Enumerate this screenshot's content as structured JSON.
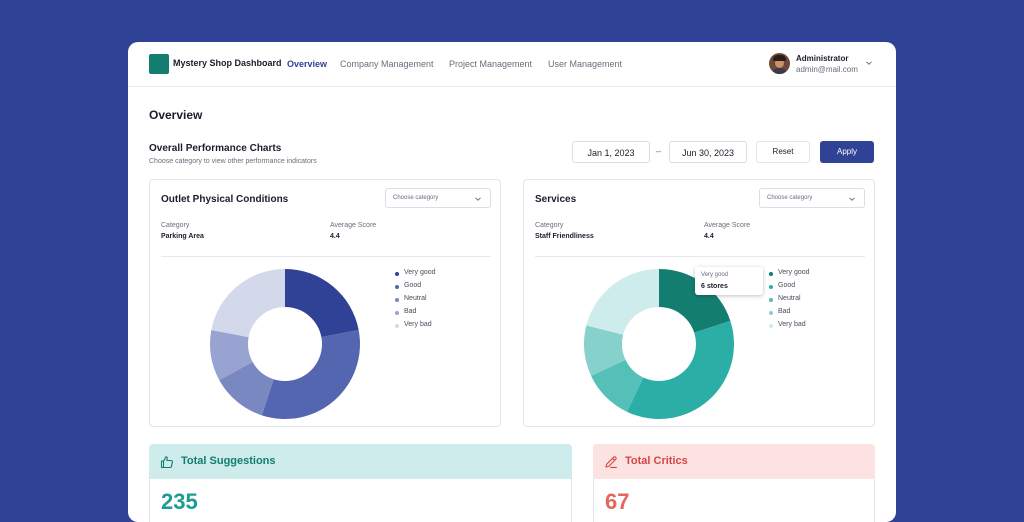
{
  "header": {
    "app_name": "Mystery Shop Dashboard",
    "nav": [
      {
        "label": "Overview",
        "active": true
      },
      {
        "label": "Company Management",
        "active": false
      },
      {
        "label": "Project Management",
        "active": false
      },
      {
        "label": "User Management",
        "active": false
      }
    ],
    "user": {
      "name": "Administrator",
      "email": "admin@mail.com"
    }
  },
  "page": {
    "title": "Overview",
    "section_title": "Overall Performance Charts",
    "section_subtitle": "Choose category to view other performance indicators"
  },
  "filters": {
    "start_date": "Jan 1, 2023",
    "end_date": "Jun 30, 2023",
    "separator": "–",
    "reset_label": "Reset",
    "apply_label": "Apply"
  },
  "cards": [
    {
      "title": "Outlet Physical Conditions",
      "select_placeholder": "Choose category",
      "category_label": "Category",
      "category_value": "Parking Area",
      "score_label": "Average Score",
      "score_value": "4.4",
      "chart_data": {
        "type": "pie",
        "categories": [
          "Very good",
          "Good",
          "Neutral",
          "Bad",
          "Very bad"
        ],
        "values": [
          22,
          33,
          12,
          11,
          22
        ],
        "colors": [
          "#2f4295",
          "#5566b0",
          "#7a88c2",
          "#98a3d1",
          "#d4d8eb"
        ]
      }
    },
    {
      "title": "Services",
      "select_placeholder": "Choose category",
      "category_label": "Category",
      "category_value": "Staff Friendliness",
      "score_label": "Average Score",
      "score_value": "4.4",
      "tooltip": {
        "label": "Very good",
        "value": "6 stores"
      },
      "chart_data": {
        "type": "pie",
        "categories": [
          "Very good",
          "Good",
          "Neutral",
          "Bad",
          "Very bad"
        ],
        "values": [
          20,
          37,
          11,
          11,
          21
        ],
        "colors": [
          "#137d70",
          "#2aaea6",
          "#55c0b8",
          "#86d1cc",
          "#cdeceb"
        ]
      }
    }
  ],
  "stats": [
    {
      "title": "Total Suggestions",
      "value": "235",
      "icon": "thumbs-up-icon",
      "bg": "#cdeceb",
      "color": "#137d70",
      "value_color": "#1a9e94"
    },
    {
      "title": "Total Critics",
      "value": "67",
      "icon": "pencil-icon",
      "bg": "#fde2e2",
      "color": "#d64545",
      "value_color": "#e4675e"
    }
  ]
}
